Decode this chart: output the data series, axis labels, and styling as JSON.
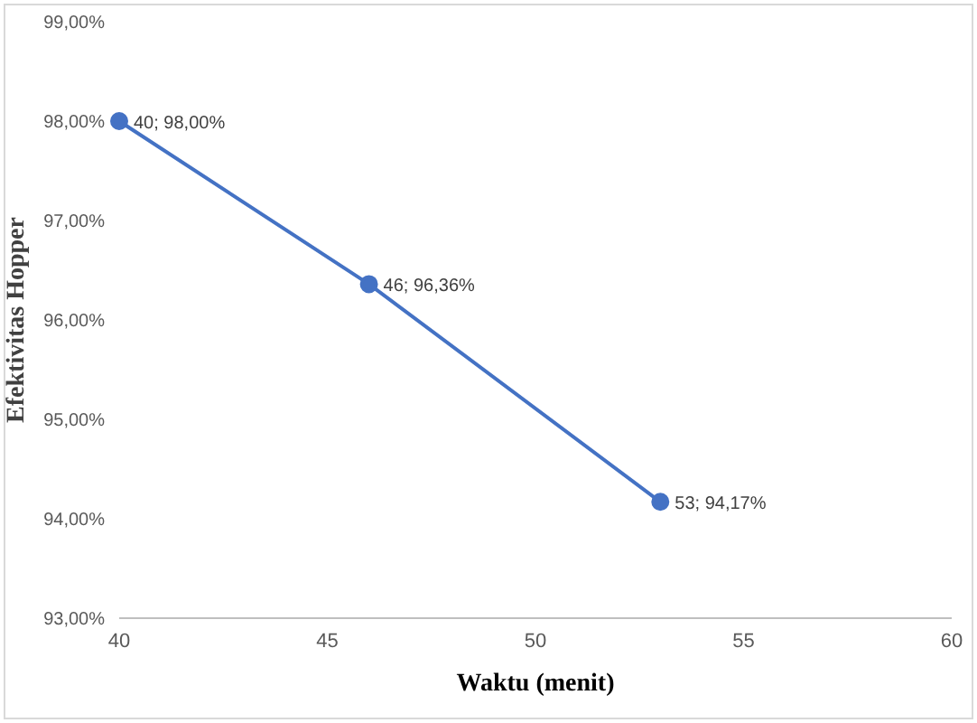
{
  "chart_data": {
    "type": "line",
    "xlabel": "Waktu (menit)",
    "ylabel": "Efektivitas Hopper",
    "x": [
      40,
      46,
      53
    ],
    "series": [
      {
        "color": "#4472c4",
        "values": [
          98,
          96.36,
          94.17
        ],
        "value_labels": [
          "40; 98,00%",
          "46; 96,36%",
          "53; 94,17%"
        ]
      }
    ],
    "xlim": [
      40,
      60
    ],
    "xticks": [
      40,
      45,
      50,
      55,
      60
    ],
    "ylim": [
      93,
      99
    ],
    "yticks": [
      {
        "value": 93,
        "label": "93,00%"
      },
      {
        "value": 94,
        "label": "94,00%"
      },
      {
        "value": 95,
        "label": "95,00%"
      },
      {
        "value": 96,
        "label": "96,00%"
      },
      {
        "value": 97,
        "label": "97,00%"
      },
      {
        "value": 98,
        "label": "98,00%"
      },
      {
        "value": 99,
        "label": "99,00%"
      }
    ],
    "grid": false,
    "legend": false,
    "marker": "circle",
    "line_style": "solid"
  }
}
